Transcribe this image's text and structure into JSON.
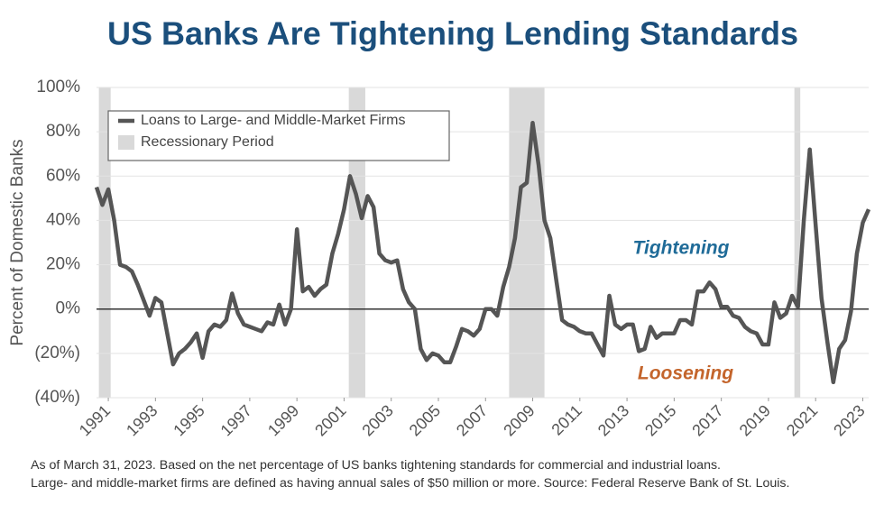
{
  "chart_data": {
    "type": "line",
    "title": "US Banks Are Tightening Lending Standards",
    "y_label": "Percent of Domestic Banks",
    "annotations": [
      "Tightening",
      "Loosening"
    ],
    "footnote": [
      "As of March 31, 2023. Based on the net percentage of US banks tightening standards for commercial and industrial loans.",
      "Large- and middle-market firms are defined as having annual sales of $50 million or more. Source: Federal Reserve Bank of St. Louis."
    ],
    "recession_label": "Recessionary Period",
    "recession_color": "#d9d9d9",
    "recessions": [
      [
        1990.6,
        1991.1
      ],
      [
        2001.2,
        2001.9
      ],
      [
        2008.0,
        2009.5
      ],
      [
        2020.1,
        2020.35
      ]
    ],
    "x": [
      1990.5,
      1990.75,
      1991,
      1991.25,
      1991.5,
      1991.75,
      1992,
      1992.25,
      1992.5,
      1992.75,
      1993,
      1993.25,
      1993.5,
      1993.75,
      1994,
      1994.25,
      1994.5,
      1994.75,
      1995,
      1995.25,
      1995.5,
      1995.75,
      1996,
      1996.25,
      1996.5,
      1996.75,
      1997,
      1997.25,
      1997.5,
      1997.75,
      1998,
      1998.25,
      1998.5,
      1998.75,
      1999,
      1999.25,
      1999.5,
      1999.75,
      2000,
      2000.25,
      2000.5,
      2000.75,
      2001,
      2001.25,
      2001.5,
      2001.75,
      2002,
      2002.25,
      2002.5,
      2002.75,
      2003,
      2003.25,
      2003.5,
      2003.75,
      2004,
      2004.25,
      2004.5,
      2004.75,
      2005,
      2005.25,
      2005.5,
      2005.75,
      2006,
      2006.25,
      2006.5,
      2006.75,
      2007,
      2007.25,
      2007.5,
      2007.75,
      2008,
      2008.25,
      2008.5,
      2008.75,
      2009,
      2009.25,
      2009.5,
      2009.75,
      2010,
      2010.25,
      2010.5,
      2010.75,
      2011,
      2011.25,
      2011.5,
      2011.75,
      2012,
      2012.25,
      2012.5,
      2012.75,
      2013,
      2013.25,
      2013.5,
      2013.75,
      2014,
      2014.25,
      2014.5,
      2014.75,
      2015,
      2015.25,
      2015.5,
      2015.75,
      2016,
      2016.25,
      2016.5,
      2016.75,
      2017,
      2017.25,
      2017.5,
      2017.75,
      2018,
      2018.25,
      2018.5,
      2018.75,
      2019,
      2019.25,
      2019.5,
      2019.75,
      2020,
      2020.25,
      2020.5,
      2020.75,
      2021,
      2021.25,
      2021.5,
      2021.75,
      2022,
      2022.25,
      2022.5,
      2022.75,
      2023,
      2023.25
    ],
    "series": [
      {
        "name": "Loans to Large- and Middle-Market Firms",
        "color": "#555555",
        "values": [
          55,
          47,
          54,
          40,
          20,
          19,
          17,
          11,
          4,
          -3,
          5,
          3,
          -11,
          -25,
          -20,
          -18,
          -15,
          -11,
          -22,
          -10,
          -7,
          -8,
          -5,
          7,
          -2,
          -7,
          -8,
          -9,
          -10,
          -6,
          -7,
          2,
          -7,
          0,
          36,
          8,
          10,
          6,
          9,
          11,
          25,
          34,
          45,
          60,
          52,
          41,
          51,
          46,
          25,
          22,
          21,
          22,
          9,
          3,
          0,
          -18,
          -23,
          -20,
          -21,
          -24,
          -24,
          -17,
          -9,
          -10,
          -12,
          -9,
          0,
          0,
          -3,
          10,
          19,
          32,
          55,
          57,
          84,
          65,
          40,
          32,
          13,
          -5,
          -7,
          -8,
          -10,
          -11,
          -11,
          -16,
          -21,
          6,
          -7,
          -9,
          -7,
          -7,
          -19,
          -18,
          -8,
          -13,
          -11,
          -11,
          -11,
          -5,
          -5,
          -7,
          8,
          8,
          12,
          9,
          1,
          1,
          -3,
          -4,
          -8,
          -10,
          -11,
          -16,
          -16,
          3,
          -4,
          -2,
          6,
          1,
          40,
          72,
          38,
          5,
          -15,
          -33,
          -18,
          -14,
          -1,
          25,
          39,
          45
        ]
      }
    ],
    "xlim": [
      1990.5,
      2023.25
    ],
    "xticks": [
      1991,
      1993,
      1995,
      1997,
      1999,
      2001,
      2003,
      2005,
      2007,
      2009,
      2011,
      2013,
      2015,
      2017,
      2019,
      2021,
      2023
    ],
    "ylim": [
      -40,
      100
    ],
    "yticks": [
      {
        "value": -40,
        "label": "(40%)"
      },
      {
        "value": -20,
        "label": "(20%)"
      },
      {
        "value": 0,
        "label": "0%"
      },
      {
        "value": 20,
        "label": "20%"
      },
      {
        "value": 40,
        "label": "40%"
      },
      {
        "value": 60,
        "label": "60%"
      },
      {
        "value": 80,
        "label": "80%"
      },
      {
        "value": 100,
        "label": "100%"
      }
    ],
    "grid": true,
    "legend": "upper left"
  }
}
